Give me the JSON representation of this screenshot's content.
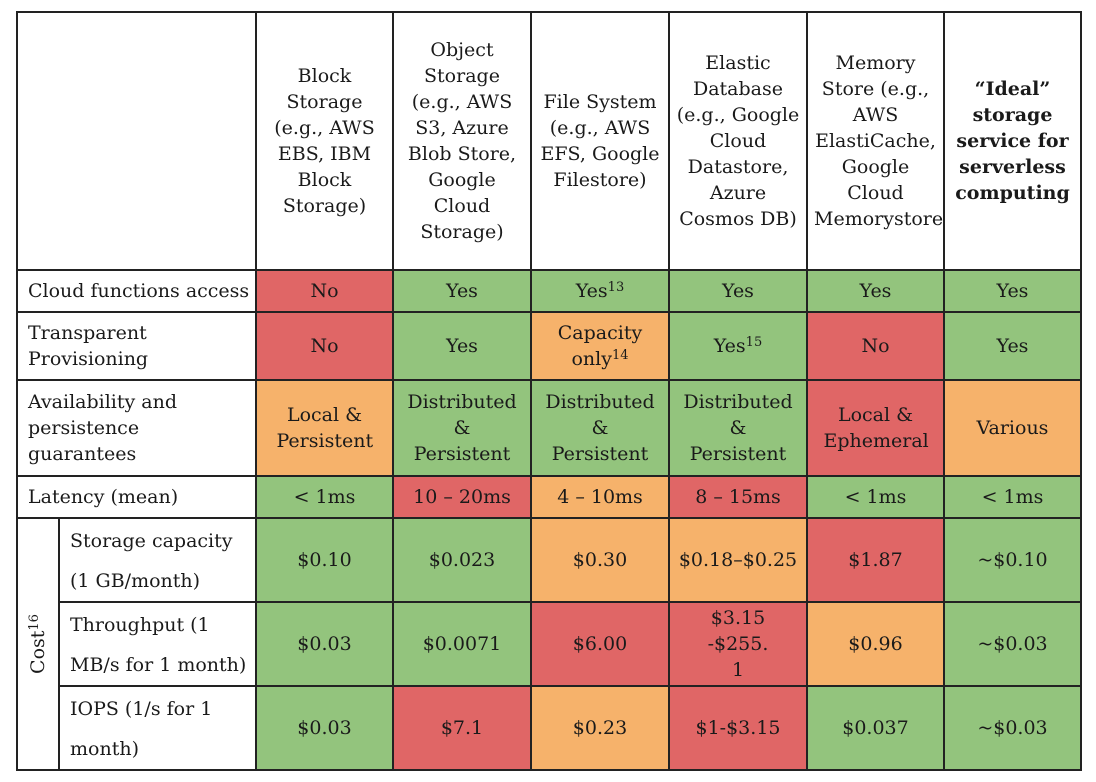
{
  "columns": [
    {
      "key": "block",
      "label": "Block Storage (e.g., AWS EBS, IBM Block Storage)"
    },
    {
      "key": "object",
      "label": "Object Storage (e.g., AWS S3, Azure Blob Store, Google Cloud Storage)"
    },
    {
      "key": "file",
      "label": "File System (e.g., AWS EFS, Google Filestore)"
    },
    {
      "key": "elastic",
      "label": "Elastic Database (e.g., Google Cloud Datastore, Azure Cosmos DB)"
    },
    {
      "key": "memory",
      "label": "Memory Store (e.g., AWS ElastiCache, Google Cloud Memorystore)"
    },
    {
      "key": "ideal",
      "label": "“Ideal” storage service for serverless computing"
    }
  ],
  "rows": {
    "cloud_functions": {
      "label": "Cloud functions access",
      "values": [
        "No",
        "Yes",
        "Yes",
        "Yes",
        "Yes",
        "Yes"
      ],
      "footnotes": [
        "",
        "",
        "13",
        "",
        "",
        ""
      ],
      "colors": [
        "red",
        "green",
        "green",
        "green",
        "green",
        "green"
      ]
    },
    "transparent": {
      "label": "Transparent Provisioning",
      "values": [
        "No",
        "Yes",
        "Capacity only",
        "Yes",
        "No",
        "Yes"
      ],
      "footnotes": [
        "",
        "",
        "14",
        "15",
        "",
        ""
      ],
      "colors": [
        "red",
        "green",
        "orange",
        "green",
        "red",
        "green"
      ]
    },
    "availability": {
      "label": "Availability and persistence guarantees",
      "values": [
        "Local & Persistent",
        "Distributed & Persistent",
        "Distributed & Persistent",
        "Distributed & Persistent",
        "Local & Ephemeral",
        "Various"
      ],
      "colors": [
        "orange",
        "green",
        "green",
        "green",
        "red",
        "orange"
      ]
    },
    "latency": {
      "label": "Latency (mean)",
      "values": [
        "< 1ms",
        "10 – 20ms",
        "4 – 10ms",
        "8 – 15ms",
        "< 1ms",
        "< 1ms"
      ],
      "colors": [
        "green",
        "red",
        "orange",
        "red",
        "green",
        "green"
      ]
    }
  },
  "cost": {
    "label": "Cost",
    "footnote": "16",
    "storage": {
      "label": "Storage capacity (1 GB/month)",
      "values": [
        "$0.10",
        "$0.023",
        "$0.30",
        "$0.18–$0.25",
        "$1.87",
        "~$0.10"
      ],
      "colors": [
        "green",
        "green",
        "orange",
        "orange",
        "red",
        "green"
      ]
    },
    "throughput": {
      "label": "Throughput (1 MB/s for 1 month)",
      "values": [
        "$0.03",
        "$0.0071",
        "$6.00",
        "$3.15-$255.1",
        "$0.96",
        "~$0.03"
      ],
      "colors": [
        "green",
        "green",
        "red",
        "red",
        "orange",
        "green"
      ]
    },
    "iops": {
      "label": "IOPS (1/s for 1 month)",
      "values": [
        "$0.03",
        "$7.1",
        "$0.23",
        "$1-$3.15",
        "$0.037",
        "~$0.03"
      ],
      "colors": [
        "green",
        "red",
        "orange",
        "red",
        "green",
        "green"
      ]
    }
  },
  "colors": {
    "green": "#93c47d",
    "red": "#e06666",
    "orange": "#f6b26b"
  }
}
